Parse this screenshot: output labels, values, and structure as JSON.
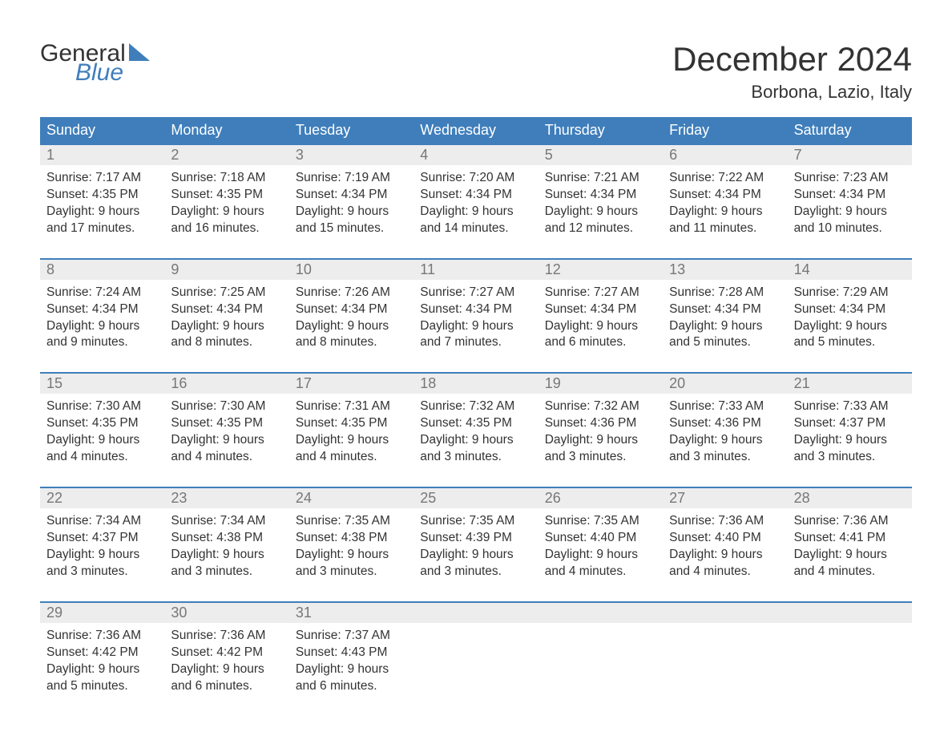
{
  "colors": {
    "brand_blue": "#3f7ebb",
    "header_bg": "#3f7ebb",
    "header_fg": "#ffffff",
    "daynum_bg": "#ededed",
    "daynum_fg": "#777777",
    "text": "#333333",
    "page_bg": "#ffffff",
    "week_divider": "#3f7ebb"
  },
  "typography": {
    "title_fontsize": 42,
    "location_fontsize": 22,
    "header_fontsize": 18,
    "daynum_fontsize": 18,
    "body_fontsize": 15.5,
    "logo_fontsize": 30
  },
  "logo": {
    "line1": "General",
    "line2": "Blue"
  },
  "title": "December 2024",
  "location": "Borbona, Lazio, Italy",
  "day_headers": [
    "Sunday",
    "Monday",
    "Tuesday",
    "Wednesday",
    "Thursday",
    "Friday",
    "Saturday"
  ],
  "weeks": [
    [
      {
        "n": "1",
        "sunrise": "Sunrise: 7:17 AM",
        "sunset": "Sunset: 4:35 PM",
        "daylight1": "Daylight: 9 hours",
        "daylight2": "and 17 minutes."
      },
      {
        "n": "2",
        "sunrise": "Sunrise: 7:18 AM",
        "sunset": "Sunset: 4:35 PM",
        "daylight1": "Daylight: 9 hours",
        "daylight2": "and 16 minutes."
      },
      {
        "n": "3",
        "sunrise": "Sunrise: 7:19 AM",
        "sunset": "Sunset: 4:34 PM",
        "daylight1": "Daylight: 9 hours",
        "daylight2": "and 15 minutes."
      },
      {
        "n": "4",
        "sunrise": "Sunrise: 7:20 AM",
        "sunset": "Sunset: 4:34 PM",
        "daylight1": "Daylight: 9 hours",
        "daylight2": "and 14 minutes."
      },
      {
        "n": "5",
        "sunrise": "Sunrise: 7:21 AM",
        "sunset": "Sunset: 4:34 PM",
        "daylight1": "Daylight: 9 hours",
        "daylight2": "and 12 minutes."
      },
      {
        "n": "6",
        "sunrise": "Sunrise: 7:22 AM",
        "sunset": "Sunset: 4:34 PM",
        "daylight1": "Daylight: 9 hours",
        "daylight2": "and 11 minutes."
      },
      {
        "n": "7",
        "sunrise": "Sunrise: 7:23 AM",
        "sunset": "Sunset: 4:34 PM",
        "daylight1": "Daylight: 9 hours",
        "daylight2": "and 10 minutes."
      }
    ],
    [
      {
        "n": "8",
        "sunrise": "Sunrise: 7:24 AM",
        "sunset": "Sunset: 4:34 PM",
        "daylight1": "Daylight: 9 hours",
        "daylight2": "and 9 minutes."
      },
      {
        "n": "9",
        "sunrise": "Sunrise: 7:25 AM",
        "sunset": "Sunset: 4:34 PM",
        "daylight1": "Daylight: 9 hours",
        "daylight2": "and 8 minutes."
      },
      {
        "n": "10",
        "sunrise": "Sunrise: 7:26 AM",
        "sunset": "Sunset: 4:34 PM",
        "daylight1": "Daylight: 9 hours",
        "daylight2": "and 8 minutes."
      },
      {
        "n": "11",
        "sunrise": "Sunrise: 7:27 AM",
        "sunset": "Sunset: 4:34 PM",
        "daylight1": "Daylight: 9 hours",
        "daylight2": "and 7 minutes."
      },
      {
        "n": "12",
        "sunrise": "Sunrise: 7:27 AM",
        "sunset": "Sunset: 4:34 PM",
        "daylight1": "Daylight: 9 hours",
        "daylight2": "and 6 minutes."
      },
      {
        "n": "13",
        "sunrise": "Sunrise: 7:28 AM",
        "sunset": "Sunset: 4:34 PM",
        "daylight1": "Daylight: 9 hours",
        "daylight2": "and 5 minutes."
      },
      {
        "n": "14",
        "sunrise": "Sunrise: 7:29 AM",
        "sunset": "Sunset: 4:34 PM",
        "daylight1": "Daylight: 9 hours",
        "daylight2": "and 5 minutes."
      }
    ],
    [
      {
        "n": "15",
        "sunrise": "Sunrise: 7:30 AM",
        "sunset": "Sunset: 4:35 PM",
        "daylight1": "Daylight: 9 hours",
        "daylight2": "and 4 minutes."
      },
      {
        "n": "16",
        "sunrise": "Sunrise: 7:30 AM",
        "sunset": "Sunset: 4:35 PM",
        "daylight1": "Daylight: 9 hours",
        "daylight2": "and 4 minutes."
      },
      {
        "n": "17",
        "sunrise": "Sunrise: 7:31 AM",
        "sunset": "Sunset: 4:35 PM",
        "daylight1": "Daylight: 9 hours",
        "daylight2": "and 4 minutes."
      },
      {
        "n": "18",
        "sunrise": "Sunrise: 7:32 AM",
        "sunset": "Sunset: 4:35 PM",
        "daylight1": "Daylight: 9 hours",
        "daylight2": "and 3 minutes."
      },
      {
        "n": "19",
        "sunrise": "Sunrise: 7:32 AM",
        "sunset": "Sunset: 4:36 PM",
        "daylight1": "Daylight: 9 hours",
        "daylight2": "and 3 minutes."
      },
      {
        "n": "20",
        "sunrise": "Sunrise: 7:33 AM",
        "sunset": "Sunset: 4:36 PM",
        "daylight1": "Daylight: 9 hours",
        "daylight2": "and 3 minutes."
      },
      {
        "n": "21",
        "sunrise": "Sunrise: 7:33 AM",
        "sunset": "Sunset: 4:37 PM",
        "daylight1": "Daylight: 9 hours",
        "daylight2": "and 3 minutes."
      }
    ],
    [
      {
        "n": "22",
        "sunrise": "Sunrise: 7:34 AM",
        "sunset": "Sunset: 4:37 PM",
        "daylight1": "Daylight: 9 hours",
        "daylight2": "and 3 minutes."
      },
      {
        "n": "23",
        "sunrise": "Sunrise: 7:34 AM",
        "sunset": "Sunset: 4:38 PM",
        "daylight1": "Daylight: 9 hours",
        "daylight2": "and 3 minutes."
      },
      {
        "n": "24",
        "sunrise": "Sunrise: 7:35 AM",
        "sunset": "Sunset: 4:38 PM",
        "daylight1": "Daylight: 9 hours",
        "daylight2": "and 3 minutes."
      },
      {
        "n": "25",
        "sunrise": "Sunrise: 7:35 AM",
        "sunset": "Sunset: 4:39 PM",
        "daylight1": "Daylight: 9 hours",
        "daylight2": "and 3 minutes."
      },
      {
        "n": "26",
        "sunrise": "Sunrise: 7:35 AM",
        "sunset": "Sunset: 4:40 PM",
        "daylight1": "Daylight: 9 hours",
        "daylight2": "and 4 minutes."
      },
      {
        "n": "27",
        "sunrise": "Sunrise: 7:36 AM",
        "sunset": "Sunset: 4:40 PM",
        "daylight1": "Daylight: 9 hours",
        "daylight2": "and 4 minutes."
      },
      {
        "n": "28",
        "sunrise": "Sunrise: 7:36 AM",
        "sunset": "Sunset: 4:41 PM",
        "daylight1": "Daylight: 9 hours",
        "daylight2": "and 4 minutes."
      }
    ],
    [
      {
        "n": "29",
        "sunrise": "Sunrise: 7:36 AM",
        "sunset": "Sunset: 4:42 PM",
        "daylight1": "Daylight: 9 hours",
        "daylight2": "and 5 minutes."
      },
      {
        "n": "30",
        "sunrise": "Sunrise: 7:36 AM",
        "sunset": "Sunset: 4:42 PM",
        "daylight1": "Daylight: 9 hours",
        "daylight2": "and 6 minutes."
      },
      {
        "n": "31",
        "sunrise": "Sunrise: 7:37 AM",
        "sunset": "Sunset: 4:43 PM",
        "daylight1": "Daylight: 9 hours",
        "daylight2": "and 6 minutes."
      },
      null,
      null,
      null,
      null
    ]
  ]
}
